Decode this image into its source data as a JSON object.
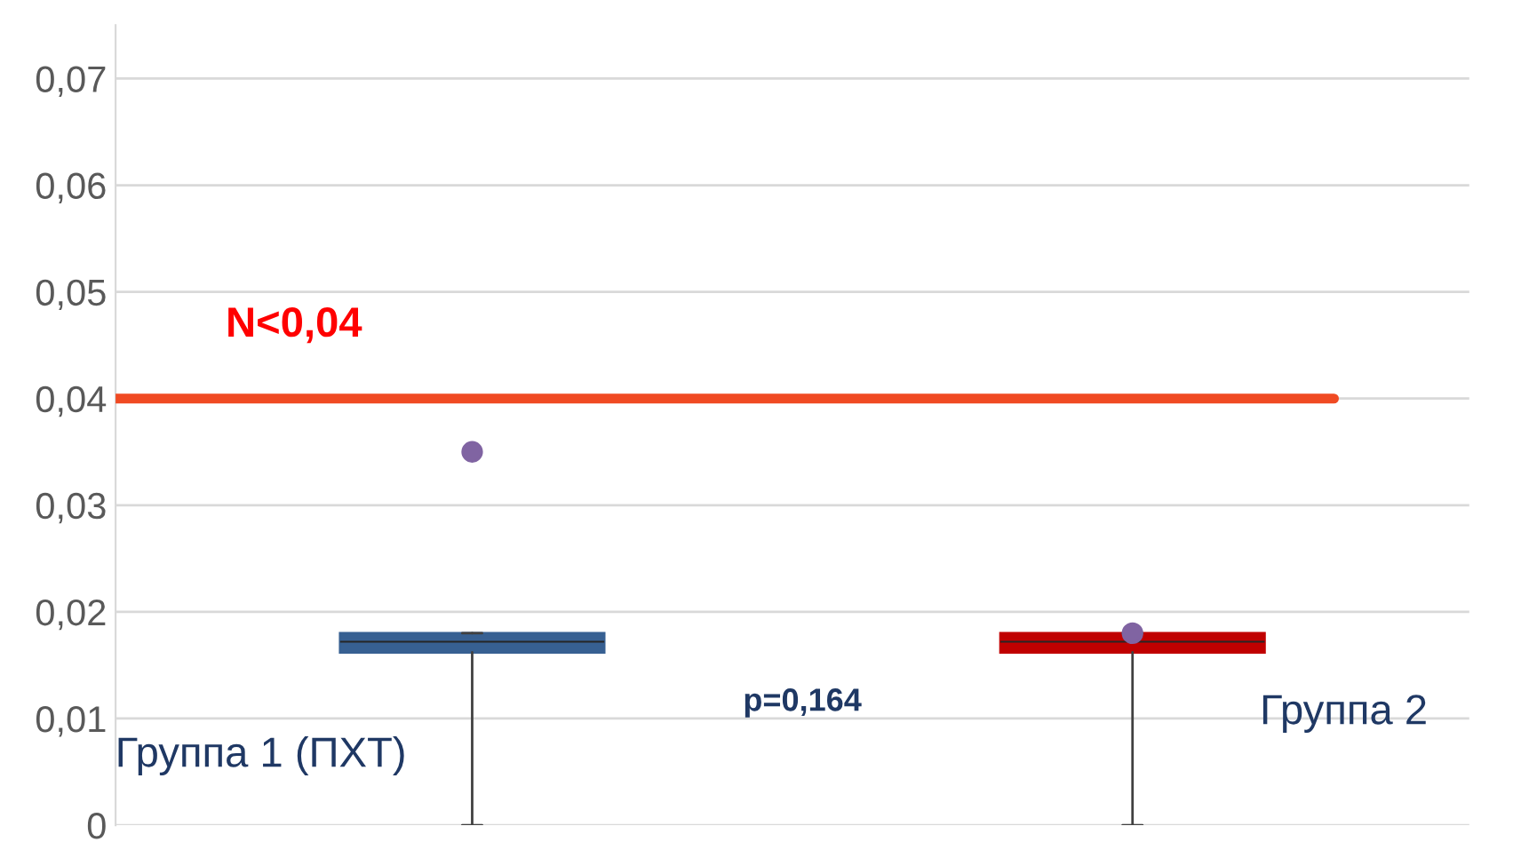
{
  "chart_data": {
    "type": "box",
    "categories": [
      "Группа 1 (ПХТ)",
      "Группа 2"
    ],
    "series": [
      {
        "color": "#376092",
        "boxes": [
          {
            "low": 0,
            "q1": 0.0162,
            "median": 0.0172,
            "q3": 0.018,
            "high": 0.018,
            "mean": 0.035
          },
          null
        ]
      },
      {
        "color": "#c00000",
        "boxes": [
          null,
          {
            "low": 0,
            "q1": 0.0162,
            "median": 0.0172,
            "q3": 0.018,
            "high": 0.018,
            "mean": 0.018
          }
        ]
      }
    ],
    "ylim": [
      0,
      0.075
    ],
    "yticks": [
      0,
      {
        "value": 0.01,
        "label": "0,01"
      },
      {
        "value": 0.02,
        "label": "0,02"
      },
      {
        "value": 0.03,
        "label": "0,03"
      },
      {
        "value": 0.04,
        "label": "0,04"
      },
      {
        "value": 0.05,
        "label": "0,05"
      },
      {
        "value": 0.06,
        "label": "0,06"
      },
      {
        "value": 0.07,
        "label": "0,07"
      }
    ],
    "grid": "y",
    "ref_lines": [
      {
        "axis": "y",
        "value": 0.04,
        "label": "N<0,04",
        "color": "#f04a23"
      }
    ],
    "annotations": [
      "p=0,164"
    ]
  }
}
